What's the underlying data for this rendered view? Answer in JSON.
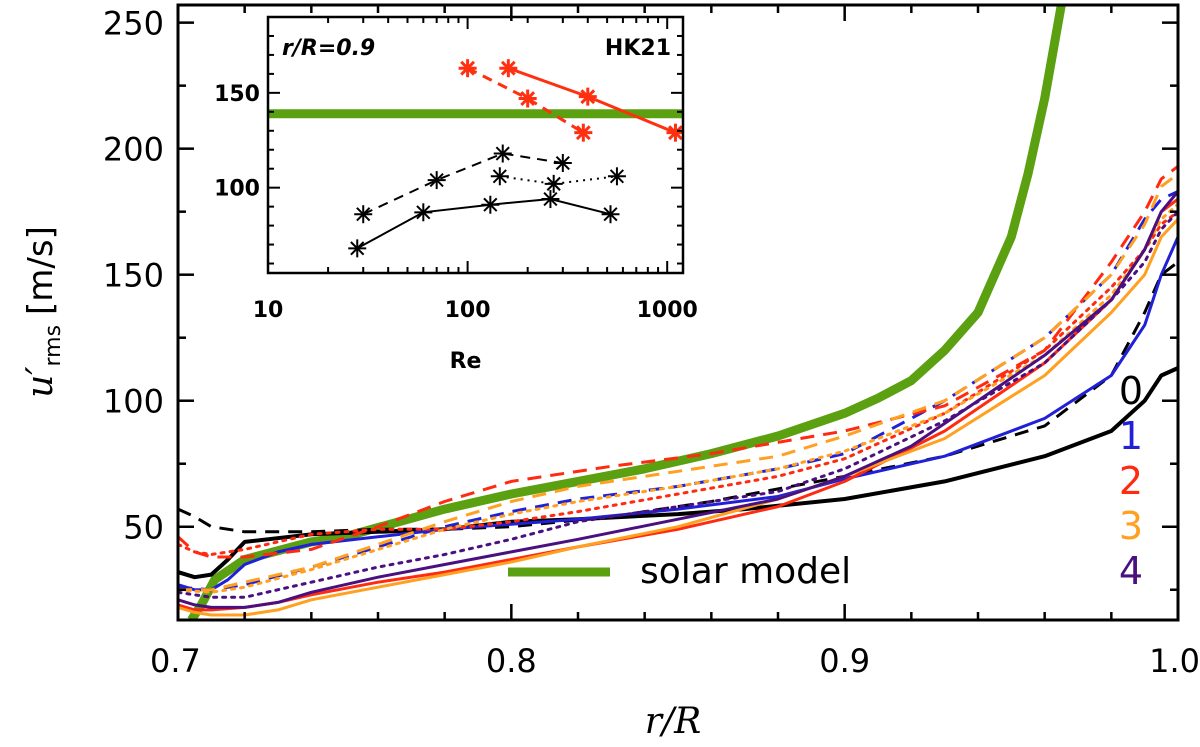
{
  "chart_data": {
    "type": "line",
    "xlabel": "r/R",
    "ylabel_main": "u′",
    "ylabel_sub": "rms",
    "ylabel_unit": "[m/s]",
    "xlim": [
      0.7,
      1.0
    ],
    "ylim": [
      13,
      257
    ],
    "x_ticks": [
      0.7,
      0.8,
      0.9,
      1.0
    ],
    "x_tick_labels": [
      "0.7",
      "0.8",
      "0.9",
      "1.0"
    ],
    "y_ticks": [
      50,
      100,
      150,
      200,
      250
    ],
    "y_tick_labels": [
      "50",
      "100",
      "150",
      "200",
      "250"
    ],
    "colors": {
      "0": "#000000",
      "1": "#2020d8",
      "2": "#ff2a10",
      "3": "#ffa020",
      "4": "#4a1080",
      "solar": "#5aa010",
      "hk21": "#ff3010"
    },
    "legend": {
      "numbers": [
        {
          "label": "0",
          "color_key": "0"
        },
        {
          "label": "1",
          "color_key": "1"
        },
        {
          "label": "2",
          "color_key": "2"
        },
        {
          "label": "3",
          "color_key": "3"
        },
        {
          "label": "4",
          "color_key": "4"
        }
      ],
      "solar_label": "solar model"
    },
    "series": [
      {
        "name": "solar model",
        "color_key": "solar",
        "style": "solid",
        "width": 9,
        "x": [
          0.704,
          0.707,
          0.711,
          0.72,
          0.74,
          0.75,
          0.78,
          0.8,
          0.82,
          0.84,
          0.86,
          0.88,
          0.9,
          0.91,
          0.92,
          0.93,
          0.94,
          0.95,
          0.955,
          0.96,
          0.965
        ],
        "y": [
          13,
          19,
          29,
          37,
          44,
          46,
          57,
          63,
          68,
          73,
          79,
          86,
          95,
          101,
          108,
          120,
          135,
          165,
          190,
          220,
          257
        ]
      },
      {
        "name": "0 solid",
        "color_key": "0",
        "style": "solid",
        "width": 4,
        "x": [
          0.7,
          0.705,
          0.71,
          0.715,
          0.72,
          0.74,
          0.76,
          0.78,
          0.8,
          0.82,
          0.85,
          0.87,
          0.9,
          0.93,
          0.96,
          0.98,
          0.99,
          0.995,
          1.0
        ],
        "y": [
          32,
          30,
          31,
          37,
          44,
          47,
          48,
          49,
          52,
          53,
          55,
          57,
          61,
          68,
          78,
          88,
          100,
          110,
          113
        ]
      },
      {
        "name": "0 dashed",
        "color_key": "0",
        "style": "dashed",
        "width": 3,
        "x": [
          0.7,
          0.705,
          0.71,
          0.72,
          0.74,
          0.76,
          0.78,
          0.8,
          0.83,
          0.86,
          0.9,
          0.93,
          0.96,
          0.98,
          0.99,
          0.995,
          1.0
        ],
        "y": [
          57,
          54,
          50,
          48,
          48,
          49,
          49,
          50,
          54,
          60,
          70,
          78,
          90,
          110,
          135,
          150,
          155
        ]
      },
      {
        "name": "1 solid",
        "color_key": "1",
        "style": "solid",
        "width": 3,
        "x": [
          0.7,
          0.705,
          0.71,
          0.715,
          0.72,
          0.73,
          0.74,
          0.76,
          0.78,
          0.8,
          0.82,
          0.85,
          0.88,
          0.9,
          0.93,
          0.96,
          0.98,
          0.99,
          0.995,
          1.0
        ],
        "y": [
          27,
          25,
          25,
          29,
          35,
          40,
          43,
          46,
          49,
          51,
          53,
          57,
          62,
          69,
          78,
          93,
          110,
          130,
          150,
          165
        ]
      },
      {
        "name": "1 dashed",
        "color_key": "1",
        "style": "dashed",
        "width": 3,
        "x": [
          0.7,
          0.71,
          0.72,
          0.74,
          0.76,
          0.78,
          0.8,
          0.82,
          0.85,
          0.88,
          0.9,
          0.93,
          0.96,
          0.98,
          0.99,
          0.995,
          1.0
        ],
        "y": [
          26,
          25,
          27,
          34,
          42,
          50,
          56,
          61,
          66,
          73,
          79,
          100,
          125,
          150,
          172,
          180,
          183
        ]
      },
      {
        "name": "2 solid",
        "color_key": "2",
        "style": "solid",
        "width": 3,
        "x": [
          0.7,
          0.705,
          0.71,
          0.72,
          0.73,
          0.74,
          0.76,
          0.78,
          0.8,
          0.82,
          0.85,
          0.88,
          0.9,
          0.93,
          0.96,
          0.98,
          0.99,
          0.995,
          1.0
        ],
        "y": [
          19,
          17,
          17,
          18,
          20,
          23,
          28,
          32,
          37,
          42,
          49,
          58,
          68,
          88,
          115,
          140,
          160,
          175,
          180
        ]
      },
      {
        "name": "2 dashed",
        "color_key": "2",
        "style": "dashed",
        "width": 3,
        "x": [
          0.7,
          0.705,
          0.71,
          0.72,
          0.74,
          0.76,
          0.78,
          0.8,
          0.83,
          0.86,
          0.9,
          0.93,
          0.96,
          0.98,
          0.99,
          0.995,
          1.0
        ],
        "y": [
          46,
          40,
          38,
          38,
          41,
          50,
          60,
          68,
          74,
          79,
          88,
          98,
          120,
          155,
          175,
          188,
          193
        ]
      },
      {
        "name": "2 dotted",
        "color_key": "2",
        "style": "dotted",
        "width": 3,
        "x": [
          0.7,
          0.705,
          0.71,
          0.72,
          0.74,
          0.76,
          0.78,
          0.8,
          0.82,
          0.85,
          0.88,
          0.9,
          0.93,
          0.96,
          0.98,
          0.99,
          0.995,
          1.0
        ],
        "y": [
          43,
          40,
          39,
          41,
          47,
          49,
          49,
          52,
          56,
          63,
          70,
          77,
          95,
          120,
          145,
          160,
          170,
          175
        ]
      },
      {
        "name": "3 solid",
        "color_key": "3",
        "style": "solid",
        "width": 3,
        "x": [
          0.7,
          0.705,
          0.71,
          0.72,
          0.73,
          0.74,
          0.76,
          0.78,
          0.8,
          0.82,
          0.85,
          0.88,
          0.9,
          0.93,
          0.96,
          0.98,
          0.99,
          0.995,
          1.0
        ],
        "y": [
          18,
          16,
          15,
          15,
          17,
          21,
          26,
          31,
          36,
          42,
          50,
          61,
          70,
          85,
          110,
          135,
          150,
          165,
          172
        ]
      },
      {
        "name": "3 dashed",
        "color_key": "3",
        "style": "dashed",
        "width": 3,
        "x": [
          0.7,
          0.71,
          0.72,
          0.74,
          0.76,
          0.78,
          0.8,
          0.82,
          0.85,
          0.88,
          0.9,
          0.93,
          0.96,
          0.98,
          0.99,
          0.995,
          1.0
        ],
        "y": [
          25,
          25,
          28,
          34,
          43,
          52,
          60,
          66,
          72,
          78,
          86,
          100,
          125,
          150,
          170,
          185,
          190
        ]
      },
      {
        "name": "3 dotted",
        "color_key": "3",
        "style": "dotted",
        "width": 3,
        "x": [
          0.7,
          0.71,
          0.72,
          0.74,
          0.76,
          0.78,
          0.8,
          0.82,
          0.85,
          0.88,
          0.9,
          0.93,
          0.96,
          0.98,
          0.99,
          0.995,
          1.0
        ],
        "y": [
          25,
          24,
          26,
          33,
          41,
          49,
          55,
          60,
          66,
          73,
          80,
          95,
          118,
          142,
          160,
          172,
          178
        ]
      },
      {
        "name": "4 solid",
        "color_key": "4",
        "style": "solid",
        "width": 3,
        "x": [
          0.7,
          0.705,
          0.71,
          0.72,
          0.73,
          0.74,
          0.76,
          0.78,
          0.8,
          0.82,
          0.85,
          0.88,
          0.9,
          0.92,
          0.94,
          0.96,
          0.98,
          0.99,
          0.995,
          1.0
        ],
        "y": [
          21,
          19,
          18,
          18,
          20,
          24,
          30,
          35,
          40,
          45,
          53,
          61,
          70,
          82,
          100,
          118,
          140,
          160,
          175,
          183
        ]
      },
      {
        "name": "4 dotted",
        "color_key": "4",
        "style": "dotted",
        "width": 3,
        "x": [
          0.7,
          0.71,
          0.72,
          0.74,
          0.76,
          0.78,
          0.8,
          0.82,
          0.85,
          0.88,
          0.9,
          0.93,
          0.96,
          0.98,
          0.99,
          0.995,
          1.0
        ],
        "y": [
          24,
          22,
          22,
          28,
          34,
          39,
          45,
          52,
          58,
          64,
          73,
          92,
          115,
          140,
          155,
          168,
          175
        ]
      }
    ],
    "inset": {
      "title": "r/R=0.9",
      "label": "HK21",
      "xlabel": "Re",
      "xscale": "log",
      "xlim": [
        10,
        1200
      ],
      "ylim": [
        55,
        190
      ],
      "x_ticks": [
        10,
        100,
        1000
      ],
      "x_tick_labels": [
        "10",
        "100",
        "1000"
      ],
      "y_ticks": [
        100,
        150
      ],
      "y_tick_labels": [
        "100",
        "150"
      ],
      "solar_value": 139,
      "series": [
        {
          "name": "black solid",
          "color_key": "0",
          "style": "solid",
          "x": [
            28,
            60,
            130,
            260,
            520
          ],
          "y": [
            68,
            87,
            91,
            94,
            86
          ]
        },
        {
          "name": "black dashed",
          "color_key": "0",
          "style": "dashed",
          "x": [
            30,
            70,
            150,
            300
          ],
          "y": [
            86,
            104,
            118,
            113
          ]
        },
        {
          "name": "black dotted",
          "color_key": "0",
          "style": "dotted",
          "x": [
            145,
            270,
            560
          ],
          "y": [
            106,
            102,
            106
          ]
        },
        {
          "name": "HK21 solid",
          "color_key": "hk21",
          "style": "solid",
          "x": [
            160,
            400,
            1100
          ],
          "y": [
            163,
            148,
            129
          ]
        },
        {
          "name": "HK21 dashed",
          "color_key": "hk21",
          "style": "dashed",
          "x": [
            100,
            200,
            380
          ],
          "y": [
            163,
            147,
            129
          ]
        }
      ]
    }
  }
}
